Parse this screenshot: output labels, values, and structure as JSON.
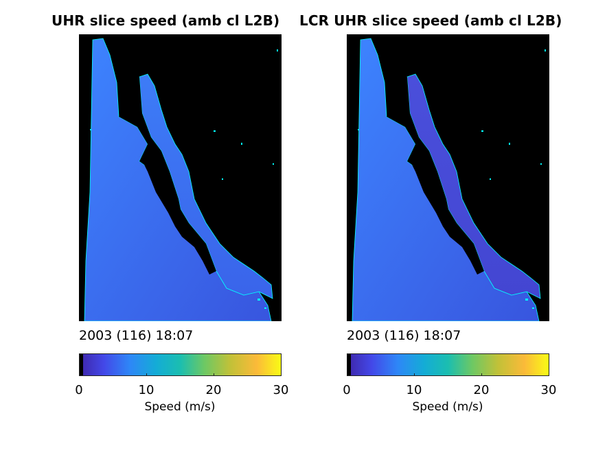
{
  "panels": [
    {
      "title": "UHR slice speed (amb cl L2B)",
      "timestamp": "2003 (116) 18:07",
      "colorbar_label": "Speed (m/s)",
      "colorbar_ticks": [
        "0",
        "10",
        "20",
        "30"
      ]
    },
    {
      "title": "LCR UHR slice speed (amb cl L2B)",
      "timestamp": "2003 (116) 18:07",
      "colorbar_label": "Speed (m/s)",
      "colorbar_ticks": [
        "0",
        "10",
        "20",
        "30"
      ]
    }
  ],
  "chart_data": [
    {
      "type": "heatmap",
      "title": "UHR slice speed (amb cl L2B)",
      "colorbar": {
        "label": "Speed (m/s)",
        "range": [
          0,
          30
        ],
        "ticks": [
          0,
          10,
          20,
          30
        ],
        "colormap": "parula"
      },
      "background": "#000000",
      "coast_color": "#00ffff",
      "dominant_speed_ms": 7
    },
    {
      "type": "heatmap",
      "title": "LCR UHR slice speed (amb cl L2B)",
      "colorbar": {
        "label": "Speed (m/s)",
        "range": [
          0,
          30
        ],
        "ticks": [
          0,
          10,
          20,
          30
        ],
        "colormap": "parula"
      },
      "background": "#000000",
      "coast_color": "#00ffff",
      "dominant_speed_ms": 7
    }
  ]
}
